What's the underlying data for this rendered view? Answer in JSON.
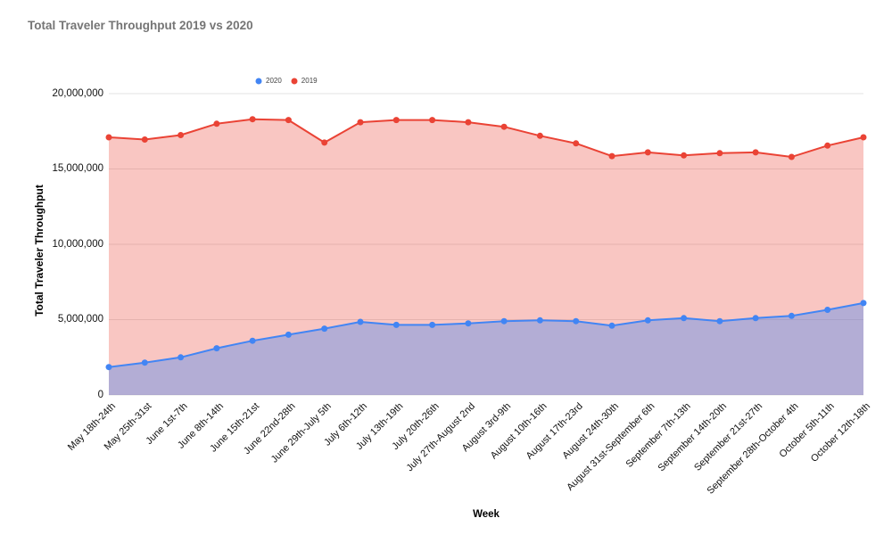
{
  "title": "Total Traveler Throughput 2019 vs 2020",
  "legend": [
    {
      "label": "2020",
      "color": "#4285F4"
    },
    {
      "label": "2019",
      "color": "#EA4335"
    }
  ],
  "y_axis": {
    "title": "Total Traveler Throughput",
    "ticks": [
      "20,000,000",
      "15,000,000",
      "10,000,000",
      "5,000,000",
      "0"
    ]
  },
  "x_axis": {
    "title": "Week"
  },
  "chart_data": {
    "type": "area",
    "title": "Total Traveler Throughput 2019 vs 2020",
    "xlabel": "Week",
    "ylabel": "Total Traveler Throughput",
    "ylim": [
      0,
      20000000
    ],
    "grid": true,
    "legend_position": "top",
    "categories": [
      "May 18th-24th",
      "May 25th-31st",
      "June 1st-7th",
      "June 8th-14th",
      "June 15th-21st",
      "June 22nd-28th",
      "June 29th-July 5th",
      "July 6th-12th",
      "July 13th-19th",
      "July 20th-26th",
      "July 27th-August 2nd",
      "August 3rd-9th",
      "August 10th-16th",
      "August 17th-23rd",
      "August 24th-30th",
      "August 31st-September 6th",
      "September 7th-13th",
      "September 14th-20th",
      "September 21st-27th",
      "September 28th-October 4th",
      "October 5th-11th",
      "October 12th-18th"
    ],
    "series": [
      {
        "name": "2020",
        "color": "#4285F4",
        "fill": "rgba(66,133,244,0.38)",
        "values": [
          1850000,
          2150000,
          2500000,
          3100000,
          3600000,
          4000000,
          4400000,
          4850000,
          4650000,
          4650000,
          4750000,
          4900000,
          4950000,
          4900000,
          4600000,
          4950000,
          5100000,
          4900000,
          5100000,
          5250000,
          5650000,
          6100000
        ]
      },
      {
        "name": "2019",
        "color": "#EA4335",
        "fill": "rgba(234,67,53,0.30)",
        "values": [
          17100000,
          16950000,
          17250000,
          18000000,
          18300000,
          18250000,
          16750000,
          18100000,
          18250000,
          18250000,
          18100000,
          17800000,
          17200000,
          16700000,
          15850000,
          16100000,
          15900000,
          16050000,
          16100000,
          15800000,
          16550000,
          17100000
        ]
      }
    ]
  }
}
